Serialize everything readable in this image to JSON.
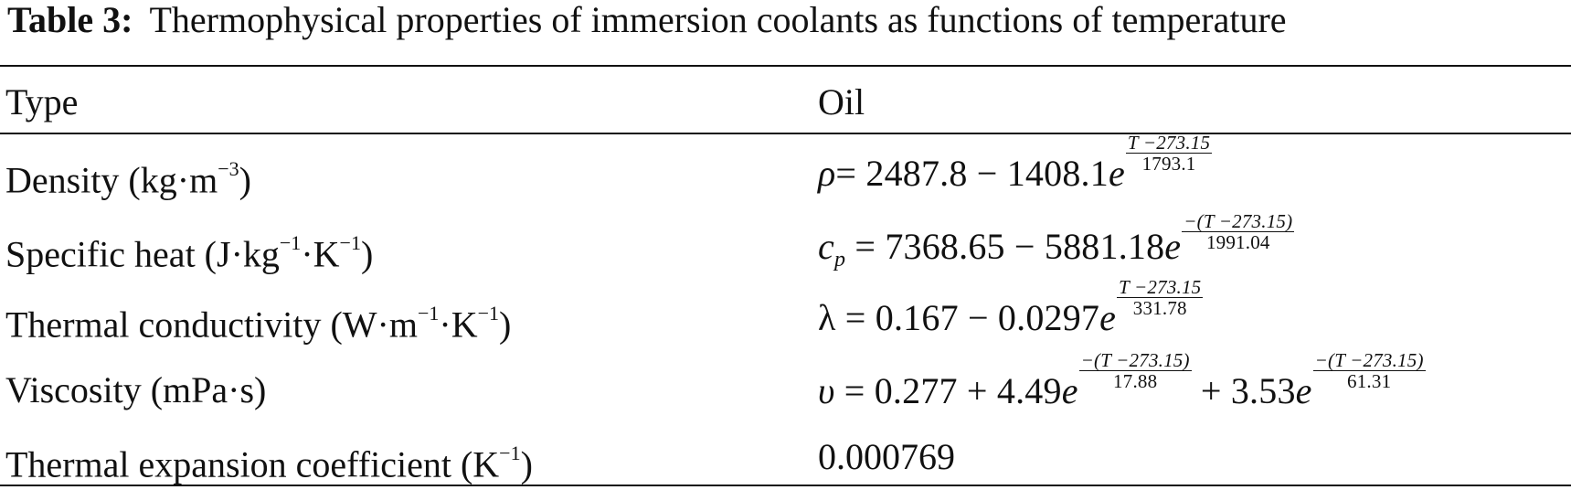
{
  "caption": {
    "label": "Table 3:",
    "text": "Thermophysical properties of immersion coolants as functions of temperature"
  },
  "header": {
    "col1": "Type",
    "col2": "Oil"
  },
  "rows": [
    {
      "name": "Density (kg·m",
      "unit_sup": "−3",
      "name_tail": ")",
      "lhs": "ρ",
      "rhs": "= 2487.8 − 1408.1",
      "exp1_num": "T −273.15",
      "exp1_den": "1793.1"
    },
    {
      "name": "Specific heat (J·kg",
      "unit_sup": "−1",
      "name_mid": "·K",
      "unit_sup2": "−1",
      "name_tail": ")",
      "lhs": "c",
      "lhs_sub": "p",
      "rhs": " = 7368.65 − 5881.18",
      "exp1_num": "−(T −273.15)",
      "exp1_den": "1991.04"
    },
    {
      "name": "Thermal conductivity (W·m",
      "unit_sup": "−1",
      "name_mid": "·K",
      "unit_sup2": "−1",
      "name_tail": ")",
      "lhs": "λ",
      "rhs": " = 0.167 − 0.0297",
      "exp1_num": "T −273.15",
      "exp1_den": "331.78"
    },
    {
      "name": "Viscosity (mPa·s)",
      "lhs": "υ",
      "rhs": " = 0.277 + 4.49",
      "exp1_num": "−(T −273.15)",
      "exp1_den": "17.88",
      "rhs2": " + 3.53",
      "exp2_num": "−(T −273.15)",
      "exp2_den": "61.31"
    },
    {
      "name": "Thermal expansion coefficient (K",
      "unit_sup": "−1",
      "name_tail": ")",
      "value": "0.000769"
    }
  ],
  "exp_base": "e"
}
